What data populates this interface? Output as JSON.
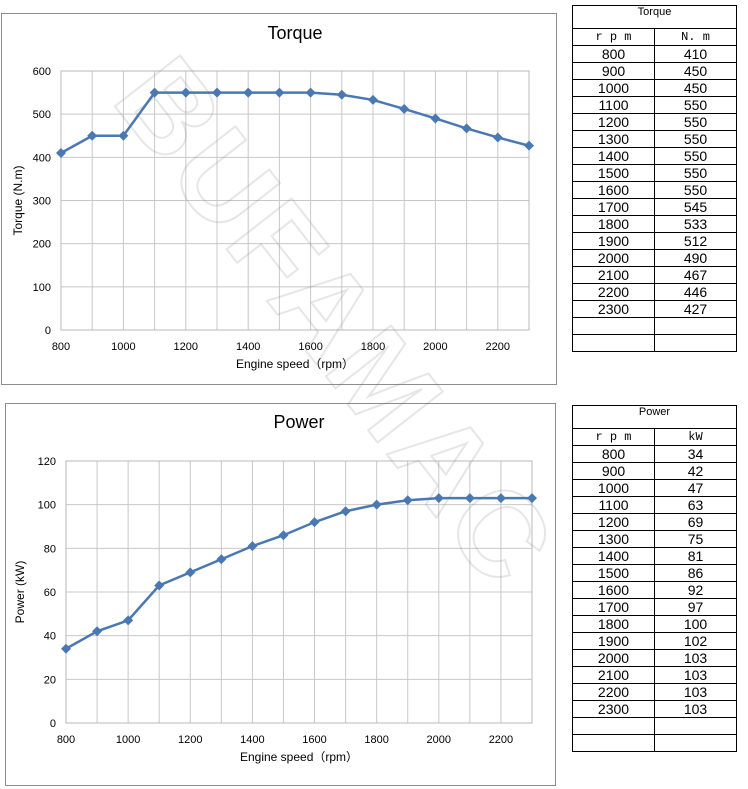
{
  "chart_data": [
    {
      "type": "line",
      "title": "Torque",
      "xlabel": "Engine speed（rpm）",
      "ylabel": "Torque (N.m)",
      "x": [
        800,
        900,
        1000,
        1100,
        1200,
        1300,
        1400,
        1500,
        1600,
        1700,
        1800,
        1900,
        2000,
        2100,
        2200,
        2300
      ],
      "series": [
        {
          "values": [
            410,
            450,
            450,
            550,
            550,
            550,
            550,
            550,
            550,
            545,
            533,
            512,
            490,
            467,
            446,
            427
          ]
        }
      ],
      "xlim": [
        800,
        2300
      ],
      "ylim": [
        0,
        600
      ],
      "xticks": [
        800,
        1000,
        1200,
        1400,
        1600,
        1800,
        2000,
        2200
      ],
      "yticks": [
        0,
        100,
        200,
        300,
        400,
        500,
        600
      ],
      "grid": true,
      "color": "#4a78b3",
      "marker": "diamond"
    },
    {
      "type": "line",
      "title": "Power",
      "xlabel": "Engine speed（rpm）",
      "ylabel": "Power (kW)",
      "x": [
        800,
        900,
        1000,
        1100,
        1200,
        1300,
        1400,
        1500,
        1600,
        1700,
        1800,
        1900,
        2000,
        2100,
        2200,
        2300
      ],
      "series": [
        {
          "values": [
            34,
            42,
            47,
            63,
            69,
            75,
            81,
            86,
            92,
            97,
            100,
            102,
            103,
            103,
            103,
            103
          ]
        }
      ],
      "xlim": [
        800,
        2300
      ],
      "ylim": [
        0,
        120
      ],
      "xticks": [
        800,
        1000,
        1200,
        1400,
        1600,
        1800,
        2000,
        2200
      ],
      "yticks": [
        0,
        20,
        40,
        60,
        80,
        100,
        120
      ],
      "grid": true,
      "color": "#4a78b3",
      "marker": "diamond"
    }
  ],
  "tables": {
    "torque": {
      "caption": "Torque",
      "headers": [
        "r p m",
        "N. m"
      ],
      "rows": [
        [
          "800",
          "410"
        ],
        [
          "900",
          "450"
        ],
        [
          "1000",
          "450"
        ],
        [
          "1100",
          "550"
        ],
        [
          "1200",
          "550"
        ],
        [
          "1300",
          "550"
        ],
        [
          "1400",
          "550"
        ],
        [
          "1500",
          "550"
        ],
        [
          "1600",
          "550"
        ],
        [
          "1700",
          "545"
        ],
        [
          "1800",
          "533"
        ],
        [
          "1900",
          "512"
        ],
        [
          "2000",
          "490"
        ],
        [
          "2100",
          "467"
        ],
        [
          "2200",
          "446"
        ],
        [
          "2300",
          "427"
        ],
        [
          "",
          ""
        ],
        [
          "",
          ""
        ]
      ]
    },
    "power": {
      "caption": "Power",
      "headers": [
        "r p m",
        "kW"
      ],
      "rows": [
        [
          "800",
          "34"
        ],
        [
          "900",
          "42"
        ],
        [
          "1000",
          "47"
        ],
        [
          "1100",
          "63"
        ],
        [
          "1200",
          "69"
        ],
        [
          "1300",
          "75"
        ],
        [
          "1400",
          "81"
        ],
        [
          "1500",
          "86"
        ],
        [
          "1600",
          "92"
        ],
        [
          "1700",
          "97"
        ],
        [
          "1800",
          "100"
        ],
        [
          "1900",
          "102"
        ],
        [
          "2000",
          "103"
        ],
        [
          "2100",
          "103"
        ],
        [
          "2200",
          "103"
        ],
        [
          "2300",
          "103"
        ],
        [
          "",
          ""
        ],
        [
          "",
          ""
        ]
      ]
    }
  },
  "watermark": "BUFAMAC"
}
